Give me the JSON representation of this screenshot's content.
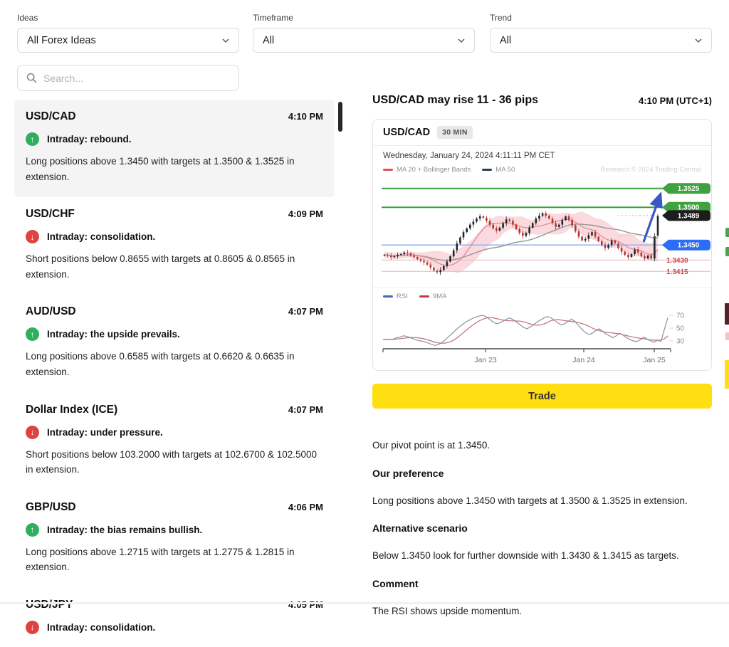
{
  "filters": {
    "ideas": {
      "label": "Ideas",
      "value": "All Forex Ideas"
    },
    "timeframe": {
      "label": "Timeframe",
      "value": "All"
    },
    "trend": {
      "label": "Trend",
      "value": "All"
    }
  },
  "search": {
    "placeholder": "Search..."
  },
  "ideas_list": [
    {
      "pair": "USD/CAD",
      "time": "4:10 PM",
      "direction": "up",
      "signal": "Intraday: rebound.",
      "description": "Long positions above 1.3450 with targets at 1.3500 & 1.3525 in extension.",
      "selected": true
    },
    {
      "pair": "USD/CHF",
      "time": "4:09 PM",
      "direction": "down",
      "signal": "Intraday: consolidation.",
      "description": "Short positions below 0.8655 with targets at 0.8605 & 0.8565 in extension.",
      "selected": false
    },
    {
      "pair": "AUD/USD",
      "time": "4:07 PM",
      "direction": "up",
      "signal": "Intraday: the upside prevails.",
      "description": "Long positions above 0.6585 with targets at 0.6620 & 0.6635 in extension.",
      "selected": false
    },
    {
      "pair": "Dollar Index (ICE)",
      "time": "4:07 PM",
      "direction": "down",
      "signal": "Intraday: under pressure.",
      "description": "Short positions below 103.2000 with targets at 102.6700 & 102.5000 in extension.",
      "selected": false
    },
    {
      "pair": "GBP/USD",
      "time": "4:06 PM",
      "direction": "up",
      "signal": "Intraday: the bias remains bullish.",
      "description": "Long positions above 1.2715 with targets at 1.2775 & 1.2815 in extension.",
      "selected": false
    },
    {
      "pair": "USD/JPY",
      "time": "4:05 PM",
      "direction": "down",
      "signal": "Intraday: consolidation.",
      "description": "",
      "selected": false
    }
  ],
  "detail": {
    "title": "USD/CAD may rise 11 - 36 pips",
    "time": "4:10 PM (UTC+1)",
    "trade_button": "Trade",
    "pivot_text": "Our pivot point is at 1.3450.",
    "sections": [
      {
        "heading": "Our preference",
        "text": "Long positions above 1.3450 with targets at 1.3500 & 1.3525 in extension."
      },
      {
        "heading": "Alternative scenario",
        "text": "Below 1.3450 look for further downside with 1.3430 & 1.3415 as targets."
      },
      {
        "heading": "Comment",
        "text": "The RSI shows upside momentum."
      }
    ]
  },
  "chart_data": {
    "type": "candlestick",
    "instrument": "USD/CAD",
    "interval": "30 MIN",
    "datetime": "Wednesday, January 24, 2024 4:11:11 PM CET",
    "watermark": "Research © 2024 Trading Central",
    "legend_price": [
      {
        "name": "MA 20 + Bollinger Bands",
        "color": "#e0565e"
      },
      {
        "name": "MA 50",
        "color": "#2e4057"
      }
    ],
    "legend_rsi": [
      {
        "name": "RSI",
        "color": "#4a66b8"
      },
      {
        "name": "9MA",
        "color": "#c8383f"
      }
    ],
    "levels": [
      {
        "label": "1.3525",
        "price": 1.3525,
        "kind": "resistance",
        "badge": "green"
      },
      {
        "label": "1.3500",
        "price": 1.35,
        "kind": "resistance",
        "badge": "green"
      },
      {
        "label": "1.3489",
        "price": 1.3489,
        "kind": "last",
        "badge": "black"
      },
      {
        "label": "1.3450",
        "price": 1.345,
        "kind": "pivot",
        "badge": "blue"
      },
      {
        "label": "1.3430",
        "price": 1.343,
        "kind": "support",
        "badge": "red-text"
      },
      {
        "label": "1.3415",
        "price": 1.3415,
        "kind": "support",
        "badge": "red-text"
      }
    ],
    "price_base": 1.34,
    "closes_pips": [
      37,
      36,
      34,
      35,
      37,
      38,
      40,
      39,
      36,
      34,
      31,
      29,
      27,
      24,
      20,
      16,
      14,
      17,
      22,
      28,
      35,
      43,
      52,
      60,
      67,
      72,
      77,
      81,
      85,
      88,
      86,
      82,
      77,
      72,
      69,
      73,
      79,
      84,
      82,
      77,
      71,
      66,
      62,
      66,
      73,
      79,
      85,
      89,
      92,
      89,
      85,
      79,
      74,
      77,
      83,
      88,
      83,
      76,
      68,
      61,
      56,
      58,
      63,
      67,
      61,
      55,
      50,
      46,
      50,
      56,
      52,
      46,
      41,
      37,
      34,
      38,
      44,
      40,
      35,
      32,
      36,
      32,
      62,
      89
    ],
    "rsi": [
      32,
      33,
      32,
      33,
      35,
      36,
      38,
      37,
      35,
      33,
      31,
      30,
      29,
      27,
      25,
      23,
      24,
      27,
      31,
      36,
      41,
      46,
      51,
      55,
      59,
      62,
      65,
      67,
      69,
      70,
      68,
      64,
      60,
      57,
      58,
      61,
      64,
      66,
      63,
      59,
      55,
      51,
      49,
      52,
      56,
      60,
      63,
      66,
      68,
      66,
      62,
      58,
      55,
      57,
      61,
      64,
      60,
      54,
      48,
      43,
      40,
      42,
      46,
      49,
      45,
      41,
      38,
      35,
      38,
      42,
      39,
      35,
      32,
      30,
      29,
      32,
      36,
      33,
      30,
      28,
      31,
      29,
      48,
      66
    ],
    "rsi_ticks": [
      70,
      50,
      30
    ],
    "x_ticks": [
      "Jan 23",
      "Jan 24",
      "Jan 25"
    ],
    "colors": {
      "candle_up": "#20262b",
      "candle_down": "#b8342e",
      "bollinger_fill": "rgba(243,168,176,0.42)",
      "ma20": "#dd8d94",
      "ma50": "#9a9a9a",
      "resistance_line": "#37a137",
      "pivot_line": "#9fb6ec",
      "support_line": "#eebdc1",
      "badge_green": "#3fa23f",
      "badge_black": "#1d1d1d",
      "badge_blue": "#2c6cf6",
      "support_text": "#c4494e",
      "arrow": "#3c55c8",
      "rsi_line": "#8792a8",
      "rsi_ma": "#c76d74"
    }
  }
}
